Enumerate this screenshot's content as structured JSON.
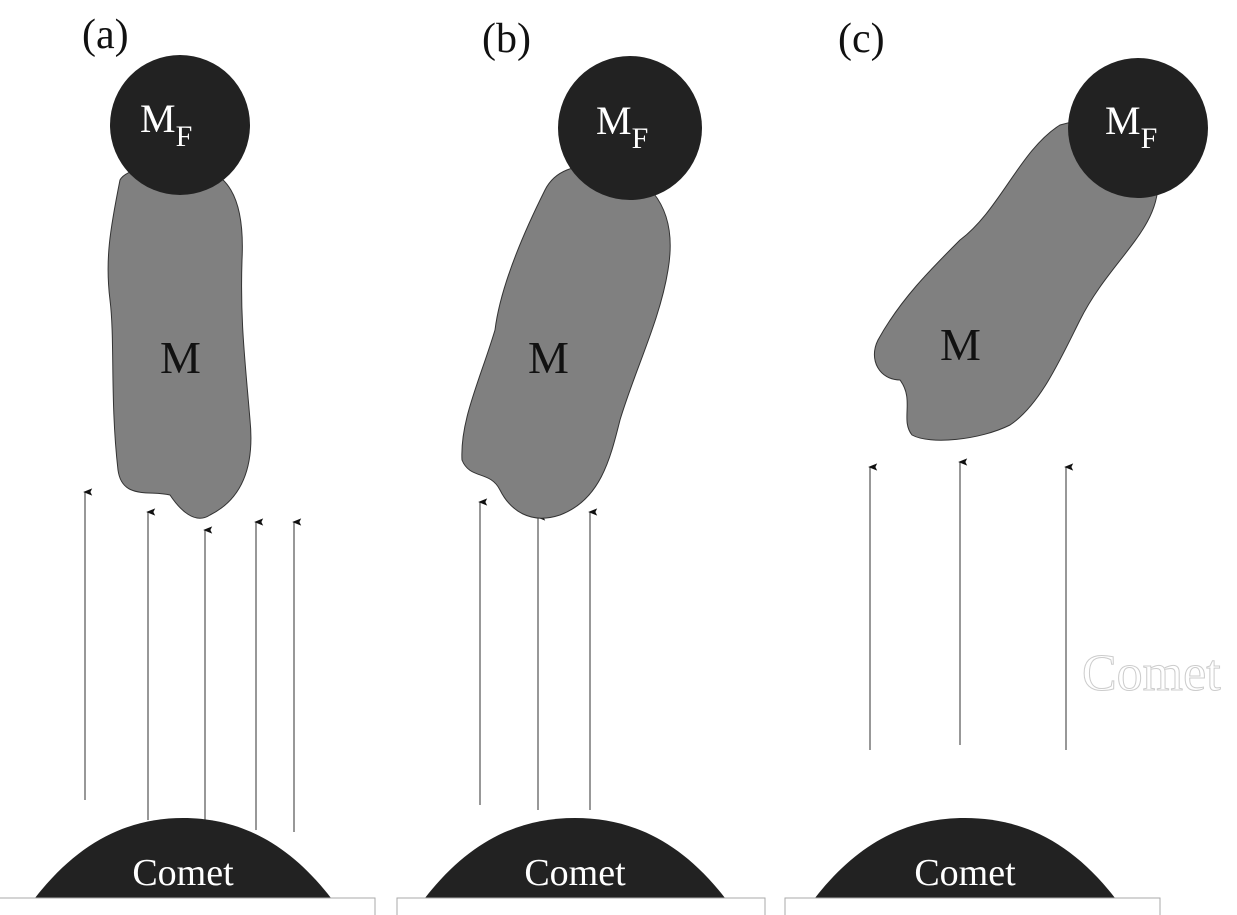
{
  "panels": [
    {
      "label": "(a)",
      "fixed_mass": {
        "symbol": "M",
        "subscript": "F"
      },
      "mass": "M",
      "body": "Comet"
    },
    {
      "label": "(b)",
      "fixed_mass": {
        "symbol": "M",
        "subscript": "F"
      },
      "mass": "M",
      "body": "Comet"
    },
    {
      "label": "(c)",
      "fixed_mass": {
        "symbol": "M",
        "subscript": "F"
      },
      "mass": "M",
      "body": "Comet"
    }
  ],
  "faint_label": "Comet"
}
